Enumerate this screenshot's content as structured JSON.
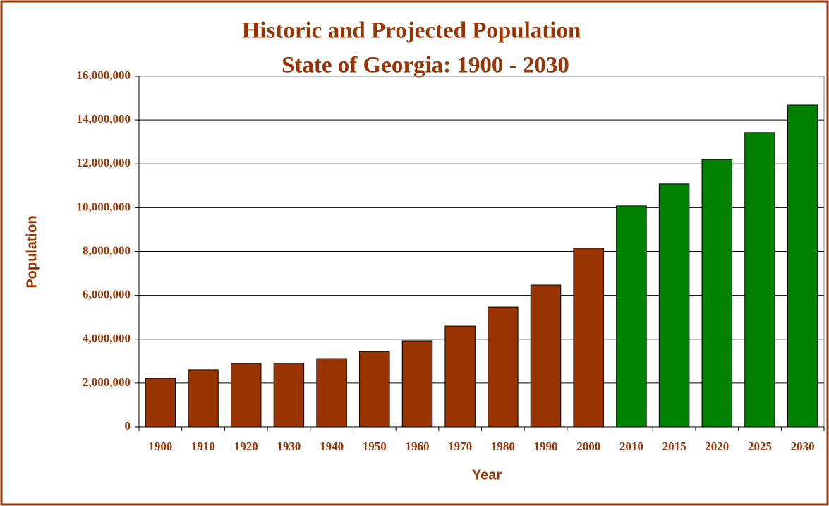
{
  "chart_data": {
    "type": "bar",
    "title": "Historic and Projected Population",
    "subtitle": "State of Georgia: 1900 - 2030",
    "x_label": "Year",
    "y_label": "Population",
    "categories": [
      "1900",
      "1910",
      "1920",
      "1930",
      "1940",
      "1950",
      "1960",
      "1970",
      "1980",
      "1990",
      "2000",
      "2010",
      "2015",
      "2020",
      "2025",
      "2030"
    ],
    "values": [
      2220000,
      2610000,
      2900000,
      2910000,
      3120000,
      3440000,
      3930000,
      4600000,
      5470000,
      6470000,
      8150000,
      10080000,
      11080000,
      12200000,
      13430000,
      14680000
    ],
    "colors": [
      "#993300",
      "#993300",
      "#993300",
      "#993300",
      "#993300",
      "#993300",
      "#993300",
      "#993300",
      "#993300",
      "#993300",
      "#993300",
      "#008000",
      "#008000",
      "#008000",
      "#008000",
      "#008000"
    ],
    "ylim": [
      0,
      16000000
    ],
    "yticks": [
      0,
      {
        "value": 2000000,
        "label": "2,000,000"
      },
      {
        "value": 4000000,
        "label": "4,000,000"
      },
      {
        "value": 6000000,
        "label": "6,000,000"
      },
      {
        "value": 8000000,
        "label": "8,000,000"
      },
      {
        "value": 10000000,
        "label": "10,000,000"
      },
      {
        "value": 12000000,
        "label": "12,000,000"
      },
      {
        "value": 14000000,
        "label": "14,000,000"
      },
      {
        "value": 16000000,
        "label": "16,000,000"
      }
    ],
    "grid": true
  }
}
